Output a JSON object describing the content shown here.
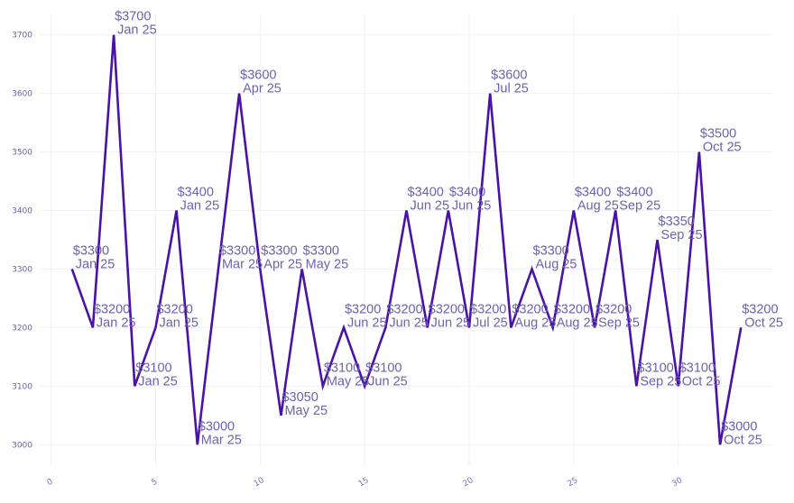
{
  "colors": {
    "line": "#4a12a6",
    "label": "#6d62ad",
    "tick": "#6a5fb0",
    "grid": "#f2f0f8",
    "background": "#ffffff"
  },
  "chart_data": {
    "type": "line",
    "title": "",
    "xlabel": "",
    "ylabel": "",
    "xlim": [
      -0.5,
      34.5
    ],
    "ylim": [
      2965,
      3735
    ],
    "x_ticks": [
      0,
      5,
      10,
      15,
      20,
      25,
      30
    ],
    "y_ticks": [
      3000,
      3100,
      3200,
      3300,
      3400,
      3500,
      3600,
      3700
    ],
    "grid": true,
    "legend": "none",
    "series": [
      {
        "x": [
          1,
          2,
          3,
          4,
          5,
          6,
          7,
          8,
          9,
          10,
          11,
          12,
          13,
          14,
          15,
          16,
          17,
          18,
          19,
          20,
          21,
          22,
          23,
          24,
          25,
          26,
          27,
          28,
          29,
          30,
          31,
          32,
          33
        ],
        "values": [
          3300,
          3200,
          3700,
          3100,
          3200,
          3400,
          3000,
          3300,
          3600,
          3300,
          3050,
          3300,
          3100,
          3200,
          3100,
          3200,
          3400,
          3200,
          3400,
          3200,
          3600,
          3200,
          3300,
          3200,
          3400,
          3200,
          3400,
          3100,
          3350,
          3100,
          3500,
          3000,
          3200
        ],
        "labels": [
          [
            "$3300",
            "Jan 25"
          ],
          [
            "$3200",
            "Jan 25"
          ],
          [
            "$3700",
            "Jan 25"
          ],
          [
            "$3100",
            "Jan 25"
          ],
          [
            "$3200",
            "Jan 25"
          ],
          [
            "$3400",
            "Jan 25"
          ],
          [
            "$3000",
            "Mar 25"
          ],
          [
            "$3300",
            "Mar 25"
          ],
          [
            "$3600",
            "Apr 25"
          ],
          [
            "$3300",
            "Apr 25"
          ],
          [
            "$3050",
            "May 25"
          ],
          [
            "$3300",
            "May 25"
          ],
          [
            "$3100",
            "May 25"
          ],
          [
            "$3200",
            "Jun 25"
          ],
          [
            "$3100",
            "Jun 25"
          ],
          [
            "$3200",
            "Jun 25"
          ],
          [
            "$3400",
            "Jun 25"
          ],
          [
            "$3200",
            "Jun 25"
          ],
          [
            "$3400",
            "Jun 25"
          ],
          [
            "$3200",
            "Jul 25"
          ],
          [
            "$3600",
            "Jul 25"
          ],
          [
            "$3200",
            "Aug 25"
          ],
          [
            "$3300",
            "Aug 25"
          ],
          [
            "$3200",
            "Aug 25"
          ],
          [
            "$3400",
            "Aug 25"
          ],
          [
            "$3200",
            "Sep 25"
          ],
          [
            "$3400",
            "Sep 25"
          ],
          [
            "$3100",
            "Sep 25"
          ],
          [
            "$3350",
            "Sep 25"
          ],
          [
            "$3100",
            "Oct 25"
          ],
          [
            "$3500",
            "Oct 25"
          ],
          [
            "$3000",
            "Oct 25"
          ],
          [
            "$3200",
            "Oct 25"
          ]
        ]
      }
    ]
  }
}
